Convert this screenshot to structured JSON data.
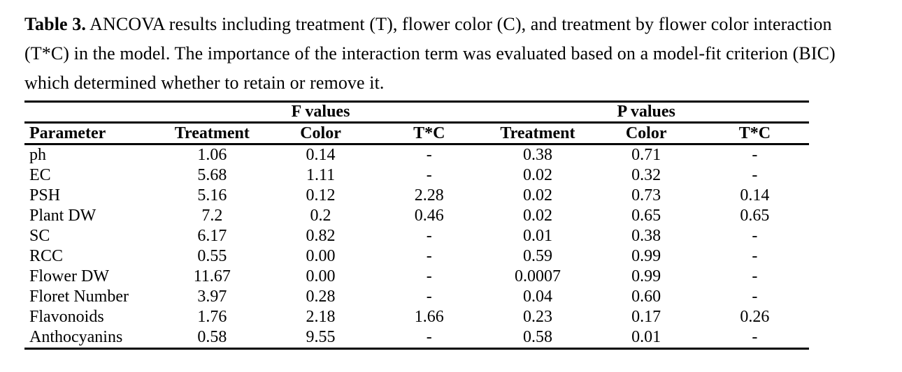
{
  "caption": {
    "label": "Table 3.",
    "text": " ANCOVA results including treatment (T), flower color (C), and treatment by flower color interaction (T*C) in the model. The importance of the interaction term was evaluated based on a model-fit criterion (BIC) which determined whether to retain or remove it."
  },
  "table": {
    "group_headers": [
      "F values",
      "P values"
    ],
    "column_headers": [
      "Parameter",
      "Treatment",
      "Color",
      "T*C",
      "Treatment",
      "Color",
      "T*C"
    ],
    "rows": [
      {
        "parameter": "ph",
        "values": [
          "1.06",
          "0.14",
          "-",
          "0.38",
          "0.71",
          "-"
        ]
      },
      {
        "parameter": "EC",
        "values": [
          "5.68",
          "1.11",
          "-",
          "0.02",
          "0.32",
          "-"
        ]
      },
      {
        "parameter": "PSH",
        "values": [
          "5.16",
          "0.12",
          "2.28",
          "0.02",
          "0.73",
          "0.14"
        ]
      },
      {
        "parameter": "Plant DW",
        "values": [
          "7.2",
          "0.2",
          "0.46",
          "0.02",
          "0.65",
          "0.65"
        ]
      },
      {
        "parameter": "SC",
        "values": [
          "6.17",
          "0.82",
          "-",
          "0.01",
          "0.38",
          "-"
        ]
      },
      {
        "parameter": "RCC",
        "values": [
          "0.55",
          "0.00",
          "-",
          "0.59",
          "0.99",
          "-"
        ]
      },
      {
        "parameter": "Flower DW",
        "values": [
          "11.67",
          "0.00",
          "-",
          "0.0007",
          "0.99",
          "-"
        ]
      },
      {
        "parameter": "Floret Number",
        "values": [
          "3.97",
          "0.28",
          "-",
          "0.04",
          "0.60",
          "-"
        ]
      },
      {
        "parameter": "Flavonoids",
        "values": [
          "1.76",
          "2.18",
          "1.66",
          "0.23",
          "0.17",
          "0.26"
        ]
      },
      {
        "parameter": "Anthocyanins",
        "values": [
          "0.58",
          "9.55",
          "-",
          "0.58",
          "0.01",
          "-"
        ]
      }
    ]
  },
  "colors": {
    "text": "#000000",
    "background": "#ffffff",
    "rule": "#000000"
  }
}
